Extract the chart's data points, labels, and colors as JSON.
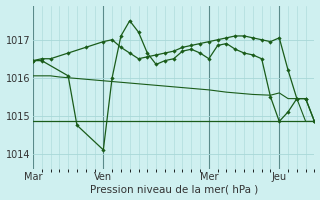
{
  "xlabel": "Pression niveau de la mer( hPa )",
  "bg_color": "#cff0f0",
  "grid_color": "#a8d8d8",
  "line_color": "#1a5c1a",
  "vline_color": "#5a8a8a",
  "ylim": [
    1013.6,
    1017.9
  ],
  "yticks": [
    1014,
    1015,
    1016,
    1017
  ],
  "xlim": [
    0,
    192
  ],
  "day_labels": [
    "Mar",
    "Ven",
    "Mer",
    "Jeu"
  ],
  "day_positions": [
    0,
    48,
    120,
    168
  ],
  "series_flat": {
    "x": [
      0,
      24,
      48,
      72,
      96,
      120,
      144,
      168,
      192
    ],
    "y": [
      1014.85,
      1014.85,
      1014.85,
      1014.85,
      1014.85,
      1014.85,
      1014.85,
      1014.85,
      1014.85
    ]
  },
  "series_declining": {
    "x": [
      0,
      6,
      12,
      18,
      24,
      30,
      36,
      42,
      48,
      54,
      60,
      66,
      72,
      78,
      84,
      90,
      96,
      102,
      108,
      114,
      120,
      126,
      132,
      138,
      144,
      150,
      156,
      162,
      168,
      174,
      180,
      186,
      192
    ],
    "y": [
      1016.05,
      1016.05,
      1016.05,
      1016.02,
      1016.0,
      1015.98,
      1015.96,
      1015.94,
      1015.92,
      1015.9,
      1015.88,
      1015.86,
      1015.84,
      1015.82,
      1015.8,
      1015.78,
      1015.76,
      1015.74,
      1015.72,
      1015.7,
      1015.68,
      1015.65,
      1015.62,
      1015.6,
      1015.58,
      1015.56,
      1015.55,
      1015.54,
      1015.6,
      1015.45,
      1015.45,
      1014.85,
      1014.85
    ]
  },
  "series_peaked": {
    "x": [
      0,
      6,
      24,
      30,
      48,
      54,
      60,
      66,
      72,
      78,
      84,
      90,
      96,
      102,
      108,
      114,
      120,
      126,
      132,
      138,
      144,
      150,
      156,
      162,
      168,
      174,
      180,
      186,
      192
    ],
    "y": [
      1016.45,
      1016.45,
      1016.05,
      1014.75,
      1014.1,
      1016.0,
      1017.1,
      1017.5,
      1017.2,
      1016.65,
      1016.35,
      1016.45,
      1016.5,
      1016.7,
      1016.75,
      1016.65,
      1016.5,
      1016.85,
      1016.9,
      1016.75,
      1016.65,
      1016.6,
      1016.5,
      1015.5,
      1014.85,
      1015.1,
      1015.45,
      1015.45,
      1014.85
    ]
  },
  "series_trend": {
    "x": [
      0,
      6,
      12,
      24,
      36,
      48,
      54,
      60,
      66,
      72,
      78,
      84,
      90,
      96,
      102,
      108,
      114,
      120,
      126,
      132,
      138,
      144,
      150,
      156,
      162,
      168,
      174,
      180,
      186,
      192
    ],
    "y": [
      1016.45,
      1016.5,
      1016.5,
      1016.65,
      1016.8,
      1016.95,
      1017.0,
      1016.8,
      1016.65,
      1016.5,
      1016.55,
      1016.6,
      1016.65,
      1016.7,
      1016.8,
      1016.85,
      1016.9,
      1016.95,
      1017.0,
      1017.05,
      1017.1,
      1017.1,
      1017.05,
      1017.0,
      1016.95,
      1017.05,
      1016.2,
      1015.45,
      1015.45,
      1014.85
    ]
  }
}
